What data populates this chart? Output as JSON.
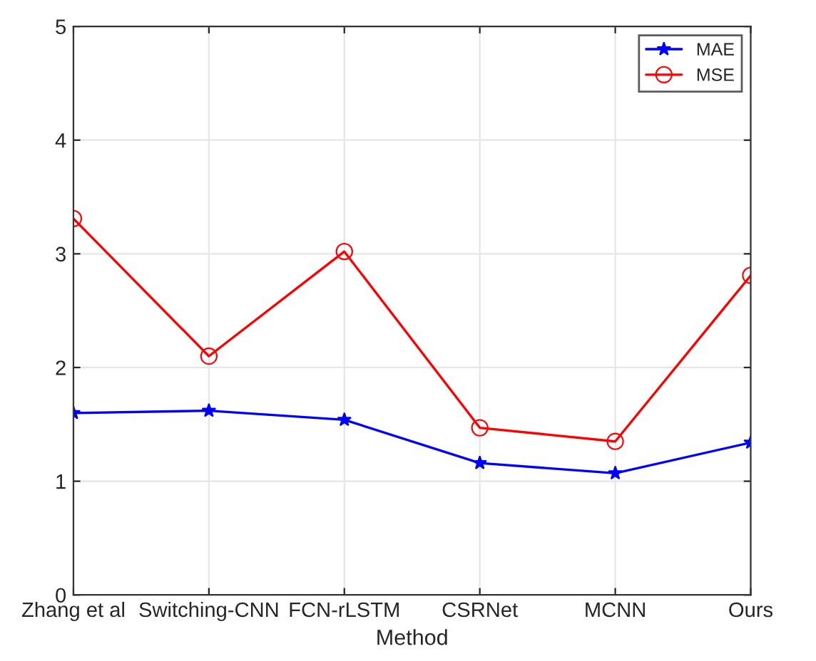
{
  "chart_data": {
    "type": "line",
    "xlabel": "Method",
    "categories": [
      "Zhang et al",
      "Switching-CNN",
      "FCN-rLSTM",
      "CSRNet",
      "MCNN",
      "Ours"
    ],
    "series": [
      {
        "name": "MAE",
        "color": "#0000ff",
        "marker": "star",
        "values": [
          1.6,
          1.62,
          1.54,
          1.16,
          1.07,
          1.34
        ]
      },
      {
        "name": "MSE",
        "color": "#ff0000",
        "marker": "circle",
        "values": [
          3.31,
          2.1,
          3.02,
          1.47,
          1.35,
          2.81
        ]
      }
    ],
    "ylim": [
      0,
      5
    ],
    "yticks": [
      0,
      1,
      2,
      3,
      4,
      5
    ],
    "grid": true,
    "legend": "top right",
    "line_style": "solid"
  }
}
